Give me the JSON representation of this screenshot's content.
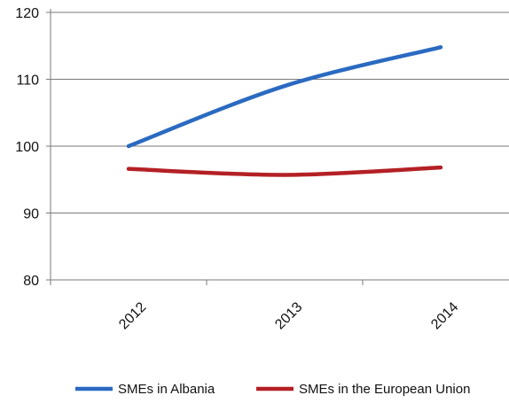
{
  "chart_data": {
    "type": "line",
    "title": "",
    "xlabel": "",
    "ylabel": "",
    "categories": [
      "2012",
      "2013",
      "2014"
    ],
    "ylim": [
      80,
      120
    ],
    "yticks": [
      80,
      90,
      100,
      110,
      120
    ],
    "grid": "horizontal",
    "legend_position": "bottom",
    "series": [
      {
        "name": "SMEs in Albania",
        "color": "#2a6ac1",
        "values": [
          100,
          109,
          114.8
        ]
      },
      {
        "name": "SMEs in the European Union",
        "color": "#b42025",
        "values": [
          96.6,
          95.7,
          96.8
        ]
      }
    ]
  }
}
